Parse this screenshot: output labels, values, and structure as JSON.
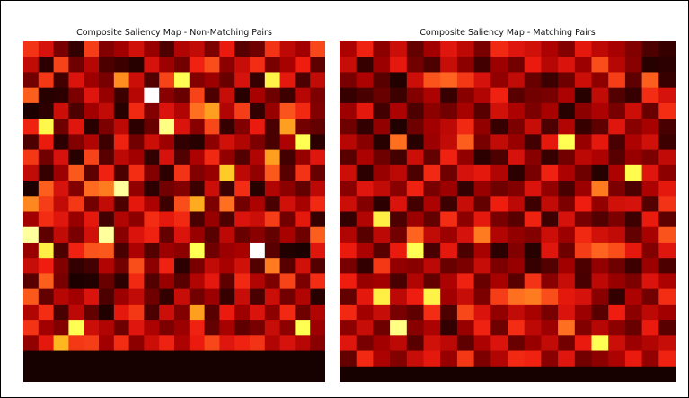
{
  "figure": {
    "colormap": "hot",
    "colormap_stops": [
      "#0b0000",
      "#5a0000",
      "#a50000",
      "#ee1c10",
      "#ff6a20",
      "#ffc020",
      "#ffff50",
      "#ffffff"
    ]
  },
  "chart_data": [
    {
      "type": "heatmap",
      "title": "Composite Saliency Map - Non-Matching Pairs",
      "rows": 22,
      "cols": 20,
      "axes": "off",
      "value_range": [
        0,
        1
      ],
      "values": [
        [
          0.47,
          0.38,
          0.2,
          0.07,
          0.49,
          0.22,
          0.28,
          0.37,
          0.26,
          0.12,
          0.31,
          0.34,
          0.21,
          0.42,
          0.14,
          0.18,
          0.47,
          0.33,
          0.28,
          0.51
        ],
        [
          0.34,
          0.06,
          0.5,
          0.18,
          0.32,
          0.12,
          0.09,
          0.05,
          0.38,
          0.27,
          0.19,
          0.44,
          0.52,
          0.24,
          0.35,
          0.46,
          0.2,
          0.29,
          0.43,
          0.15
        ],
        [
          0.19,
          0.48,
          0.1,
          0.39,
          0.27,
          0.2,
          0.63,
          0.36,
          0.13,
          0.5,
          0.86,
          0.22,
          0.27,
          0.17,
          0.38,
          0.08,
          0.83,
          0.41,
          0.12,
          0.34
        ],
        [
          0.55,
          0.05,
          0.06,
          0.21,
          0.4,
          0.26,
          0.09,
          0.32,
          1.0,
          0.23,
          0.17,
          0.5,
          0.12,
          0.35,
          0.05,
          0.29,
          0.18,
          0.09,
          0.32,
          0.21
        ],
        [
          0.03,
          0.06,
          0.36,
          0.12,
          0.28,
          0.34,
          0.05,
          0.45,
          0.22,
          0.39,
          0.31,
          0.58,
          0.66,
          0.31,
          0.49,
          0.07,
          0.26,
          0.53,
          0.45,
          0.22
        ],
        [
          0.44,
          0.84,
          0.18,
          0.4,
          0.05,
          0.21,
          0.33,
          0.06,
          0.17,
          0.9,
          0.39,
          0.23,
          0.51,
          0.08,
          0.22,
          0.42,
          0.11,
          0.66,
          0.19,
          0.16
        ],
        [
          0.12,
          0.42,
          0.06,
          0.22,
          0.31,
          0.09,
          0.44,
          0.19,
          0.36,
          0.27,
          0.07,
          0.05,
          0.24,
          0.37,
          0.31,
          0.21,
          0.11,
          0.3,
          0.86,
          0.06
        ],
        [
          0.48,
          0.19,
          0.38,
          0.05,
          0.5,
          0.14,
          0.33,
          0.28,
          0.07,
          0.38,
          0.13,
          0.3,
          0.45,
          0.25,
          0.13,
          0.31,
          0.66,
          0.1,
          0.26,
          0.4
        ],
        [
          0.34,
          0.08,
          0.27,
          0.54,
          0.15,
          0.44,
          0.12,
          0.46,
          0.22,
          0.06,
          0.47,
          0.22,
          0.26,
          0.74,
          0.33,
          0.25,
          0.54,
          0.14,
          0.47,
          0.17
        ],
        [
          0.03,
          0.55,
          0.38,
          0.22,
          0.57,
          0.6,
          0.92,
          0.25,
          0.06,
          0.19,
          0.22,
          0.09,
          0.36,
          0.09,
          0.46,
          0.05,
          0.31,
          0.24,
          0.16,
          0.33
        ],
        [
          0.62,
          0.49,
          0.34,
          0.48,
          0.19,
          0.34,
          0.12,
          0.41,
          0.3,
          0.09,
          0.52,
          0.68,
          0.21,
          0.58,
          0.19,
          0.3,
          0.11,
          0.37,
          0.29,
          0.45
        ],
        [
          0.28,
          0.46,
          0.4,
          0.26,
          0.41,
          0.1,
          0.31,
          0.24,
          0.46,
          0.41,
          0.45,
          0.11,
          0.26,
          0.12,
          0.39,
          0.36,
          0.49,
          0.19,
          0.41,
          0.08
        ],
        [
          0.92,
          0.15,
          0.34,
          0.2,
          0.37,
          0.92,
          0.23,
          0.39,
          0.44,
          0.16,
          0.39,
          0.26,
          0.14,
          0.33,
          0.17,
          0.23,
          0.16,
          0.29,
          0.18,
          0.55
        ],
        [
          0.26,
          0.82,
          0.12,
          0.44,
          0.53,
          0.54,
          0.11,
          0.3,
          0.13,
          0.27,
          0.24,
          0.86,
          0.18,
          0.27,
          0.29,
          1.0,
          0.14,
          0.04,
          0.03,
          0.4
        ],
        [
          0.35,
          0.43,
          0.22,
          0.07,
          0.1,
          0.31,
          0.19,
          0.52,
          0.24,
          0.44,
          0.06,
          0.2,
          0.34,
          0.29,
          0.37,
          0.13,
          0.6,
          0.14,
          0.37,
          0.13
        ],
        [
          0.14,
          0.55,
          0.2,
          0.03,
          0.04,
          0.17,
          0.06,
          0.45,
          0.13,
          0.26,
          0.14,
          0.31,
          0.41,
          0.15,
          0.45,
          0.31,
          0.21,
          0.5,
          0.21,
          0.46
        ],
        [
          0.54,
          0.16,
          0.32,
          0.28,
          0.39,
          0.12,
          0.27,
          0.34,
          0.18,
          0.07,
          0.35,
          0.19,
          0.27,
          0.08,
          0.35,
          0.11,
          0.36,
          0.19,
          0.31,
          0.05
        ],
        [
          0.31,
          0.46,
          0.11,
          0.33,
          0.16,
          0.04,
          0.41,
          0.48,
          0.12,
          0.36,
          0.22,
          0.66,
          0.14,
          0.42,
          0.27,
          0.39,
          0.24,
          0.45,
          0.18,
          0.31
        ],
        [
          0.47,
          0.28,
          0.22,
          0.86,
          0.36,
          0.31,
          0.18,
          0.4,
          0.3,
          0.21,
          0.27,
          0.44,
          0.16,
          0.29,
          0.15,
          0.2,
          0.35,
          0.24,
          0.86,
          0.27
        ],
        [
          0.25,
          0.41,
          0.7,
          0.48,
          0.49,
          0.28,
          0.46,
          0.24,
          0.36,
          0.44,
          0.3,
          0.42,
          0.51,
          0.4,
          0.44,
          0.47,
          0.31,
          0.38,
          0.32,
          0.23
        ],
        [
          0.02,
          0.02,
          0.02,
          0.02,
          0.02,
          0.02,
          0.02,
          0.02,
          0.02,
          0.02,
          0.02,
          0.02,
          0.02,
          0.02,
          0.02,
          0.02,
          0.02,
          0.02,
          0.02,
          0.02
        ],
        [
          0.02,
          0.02,
          0.02,
          0.02,
          0.02,
          0.02,
          0.02,
          0.02,
          0.02,
          0.02,
          0.02,
          0.02,
          0.02,
          0.02,
          0.02,
          0.02,
          0.02,
          0.02,
          0.02,
          0.02
        ]
      ]
    },
    {
      "type": "heatmap",
      "title": "Composite Saliency Map - Matching Pairs",
      "rows": 22,
      "cols": 20,
      "axes": "off",
      "value_range": [
        0,
        1
      ],
      "values": [
        [
          0.3,
          0.44,
          0.24,
          0.36,
          0.16,
          0.28,
          0.4,
          0.33,
          0.2,
          0.45,
          0.4,
          0.37,
          0.3,
          0.22,
          0.41,
          0.33,
          0.29,
          0.22,
          0.12,
          0.08
        ],
        [
          0.35,
          0.08,
          0.27,
          0.41,
          0.19,
          0.12,
          0.35,
          0.24,
          0.1,
          0.27,
          0.19,
          0.42,
          0.32,
          0.39,
          0.27,
          0.52,
          0.32,
          0.23,
          0.05,
          0.06
        ],
        [
          0.2,
          0.3,
          0.14,
          0.04,
          0.36,
          0.53,
          0.56,
          0.48,
          0.38,
          0.25,
          0.34,
          0.17,
          0.09,
          0.18,
          0.36,
          0.24,
          0.49,
          0.15,
          0.55,
          0.08
        ],
        [
          0.08,
          0.11,
          0.17,
          0.09,
          0.22,
          0.3,
          0.08,
          0.23,
          0.31,
          0.44,
          0.14,
          0.19,
          0.2,
          0.3,
          0.05,
          0.34,
          0.13,
          0.08,
          0.46,
          0.38
        ],
        [
          0.27,
          0.41,
          0.1,
          0.3,
          0.12,
          0.24,
          0.19,
          0.29,
          0.14,
          0.37,
          0.3,
          0.21,
          0.29,
          0.05,
          0.24,
          0.3,
          0.2,
          0.36,
          0.17,
          0.46
        ],
        [
          0.18,
          0.07,
          0.25,
          0.04,
          0.18,
          0.28,
          0.33,
          0.45,
          0.25,
          0.08,
          0.21,
          0.35,
          0.12,
          0.31,
          0.08,
          0.15,
          0.4,
          0.23,
          0.29,
          0.11
        ],
        [
          0.32,
          0.23,
          0.05,
          0.58,
          0.05,
          0.27,
          0.34,
          0.55,
          0.2,
          0.34,
          0.26,
          0.1,
          0.41,
          0.86,
          0.26,
          0.41,
          0.11,
          0.3,
          0.37,
          0.09
        ],
        [
          0.14,
          0.3,
          0.18,
          0.1,
          0.36,
          0.16,
          0.44,
          0.25,
          0.06,
          0.12,
          0.38,
          0.23,
          0.08,
          0.19,
          0.33,
          0.3,
          0.14,
          0.26,
          0.21,
          0.34
        ],
        [
          0.36,
          0.06,
          0.26,
          0.33,
          0.12,
          0.45,
          0.18,
          0.38,
          0.41,
          0.31,
          0.06,
          0.2,
          0.44,
          0.3,
          0.18,
          0.05,
          0.3,
          0.85,
          0.4,
          0.24
        ],
        [
          0.23,
          0.4,
          0.34,
          0.23,
          0.44,
          0.2,
          0.27,
          0.07,
          0.26,
          0.18,
          0.22,
          0.39,
          0.25,
          0.11,
          0.27,
          0.6,
          0.21,
          0.12,
          0.3,
          0.41
        ],
        [
          0.36,
          0.22,
          0.06,
          0.39,
          0.1,
          0.3,
          0.09,
          0.35,
          0.16,
          0.43,
          0.33,
          0.09,
          0.34,
          0.21,
          0.43,
          0.25,
          0.37,
          0.38,
          0.13,
          0.47
        ],
        [
          0.07,
          0.31,
          0.82,
          0.12,
          0.27,
          0.16,
          0.46,
          0.24,
          0.41,
          0.2,
          0.14,
          0.44,
          0.09,
          0.38,
          0.2,
          0.13,
          0.21,
          0.09,
          0.42,
          0.15
        ],
        [
          0.31,
          0.14,
          0.33,
          0.19,
          0.56,
          0.34,
          0.27,
          0.38,
          0.6,
          0.31,
          0.25,
          0.22,
          0.36,
          0.27,
          0.45,
          0.37,
          0.34,
          0.16,
          0.29,
          0.53
        ],
        [
          0.42,
          0.3,
          0.14,
          0.42,
          0.86,
          0.11,
          0.41,
          0.12,
          0.29,
          0.06,
          0.22,
          0.05,
          0.4,
          0.18,
          0.49,
          0.56,
          0.52,
          0.41,
          0.22,
          0.4
        ],
        [
          0.2,
          0.07,
          0.48,
          0.25,
          0.23,
          0.33,
          0.17,
          0.21,
          0.35,
          0.21,
          0.26,
          0.08,
          0.13,
          0.28,
          0.12,
          0.25,
          0.18,
          0.09,
          0.27,
          0.12
        ],
        [
          0.43,
          0.26,
          0.28,
          0.11,
          0.31,
          0.16,
          0.3,
          0.44,
          0.17,
          0.29,
          0.14,
          0.47,
          0.23,
          0.35,
          0.11,
          0.33,
          0.26,
          0.21,
          0.39,
          0.3
        ],
        [
          0.16,
          0.41,
          0.82,
          0.33,
          0.43,
          0.83,
          0.28,
          0.35,
          0.21,
          0.49,
          0.58,
          0.6,
          0.52,
          0.41,
          0.38,
          0.23,
          0.07,
          0.3,
          0.19,
          0.46
        ],
        [
          0.45,
          0.28,
          0.35,
          0.2,
          0.15,
          0.46,
          0.12,
          0.51,
          0.39,
          0.25,
          0.34,
          0.29,
          0.2,
          0.39,
          0.27,
          0.14,
          0.43,
          0.24,
          0.33,
          0.28
        ],
        [
          0.24,
          0.35,
          0.18,
          0.9,
          0.23,
          0.3,
          0.07,
          0.26,
          0.44,
          0.18,
          0.46,
          0.33,
          0.27,
          0.58,
          0.22,
          0.32,
          0.24,
          0.17,
          0.42,
          0.14
        ],
        [
          0.4,
          0.2,
          0.28,
          0.33,
          0.14,
          0.37,
          0.33,
          0.15,
          0.3,
          0.39,
          0.17,
          0.26,
          0.34,
          0.19,
          0.42,
          0.86,
          0.36,
          0.27,
          0.31,
          0.35
        ],
        [
          0.16,
          0.45,
          0.3,
          0.22,
          0.35,
          0.41,
          0.26,
          0.48,
          0.21,
          0.31,
          0.45,
          0.44,
          0.23,
          0.4,
          0.19,
          0.24,
          0.3,
          0.42,
          0.25,
          0.44
        ],
        [
          0.02,
          0.02,
          0.02,
          0.02,
          0.02,
          0.02,
          0.02,
          0.02,
          0.02,
          0.02,
          0.02,
          0.02,
          0.02,
          0.02,
          0.02,
          0.02,
          0.02,
          0.02,
          0.02,
          0.02
        ]
      ]
    }
  ]
}
